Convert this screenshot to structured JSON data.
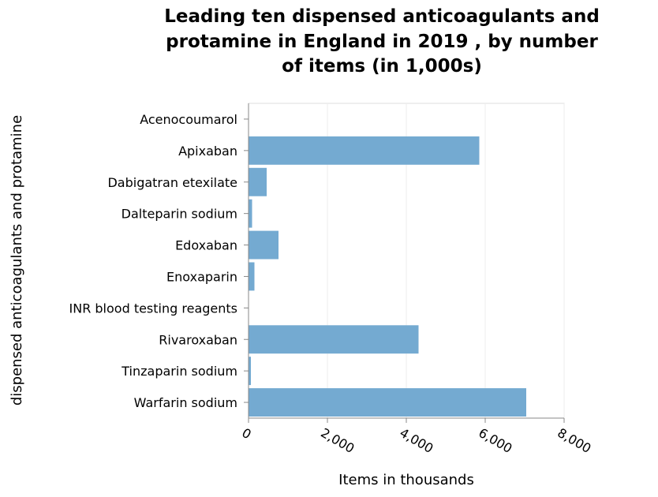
{
  "chart_data": {
    "type": "bar",
    "orientation": "horizontal",
    "title_lines": [
      "Leading ten dispensed anticoagulants and",
      "protamine in England in 2019 , by number",
      "of items (in 1,000s)"
    ],
    "xlabel": "Items in thousands",
    "ylabel": "dispensed anticoagulants and protamine",
    "xlim": [
      0,
      8000
    ],
    "xticks": [
      0,
      2000,
      4000,
      6000,
      8000
    ],
    "xtick_labels": [
      "0",
      "2,000",
      "4,000",
      "6,000",
      "8,000"
    ],
    "grid": true,
    "bar_color": "#74aad1",
    "categories": [
      "Acenocoumarol",
      "Apixaban",
      "Dabigatran etexilate",
      "Dalteparin sodium",
      "Edoxaban",
      "Enoxaparin",
      "INR blood testing reagents",
      "Rivaroxaban",
      "Tinzaparin sodium",
      "Warfarin sodium"
    ],
    "values": [
      5,
      5850,
      460,
      90,
      760,
      150,
      5,
      4310,
      60,
      7040
    ]
  }
}
